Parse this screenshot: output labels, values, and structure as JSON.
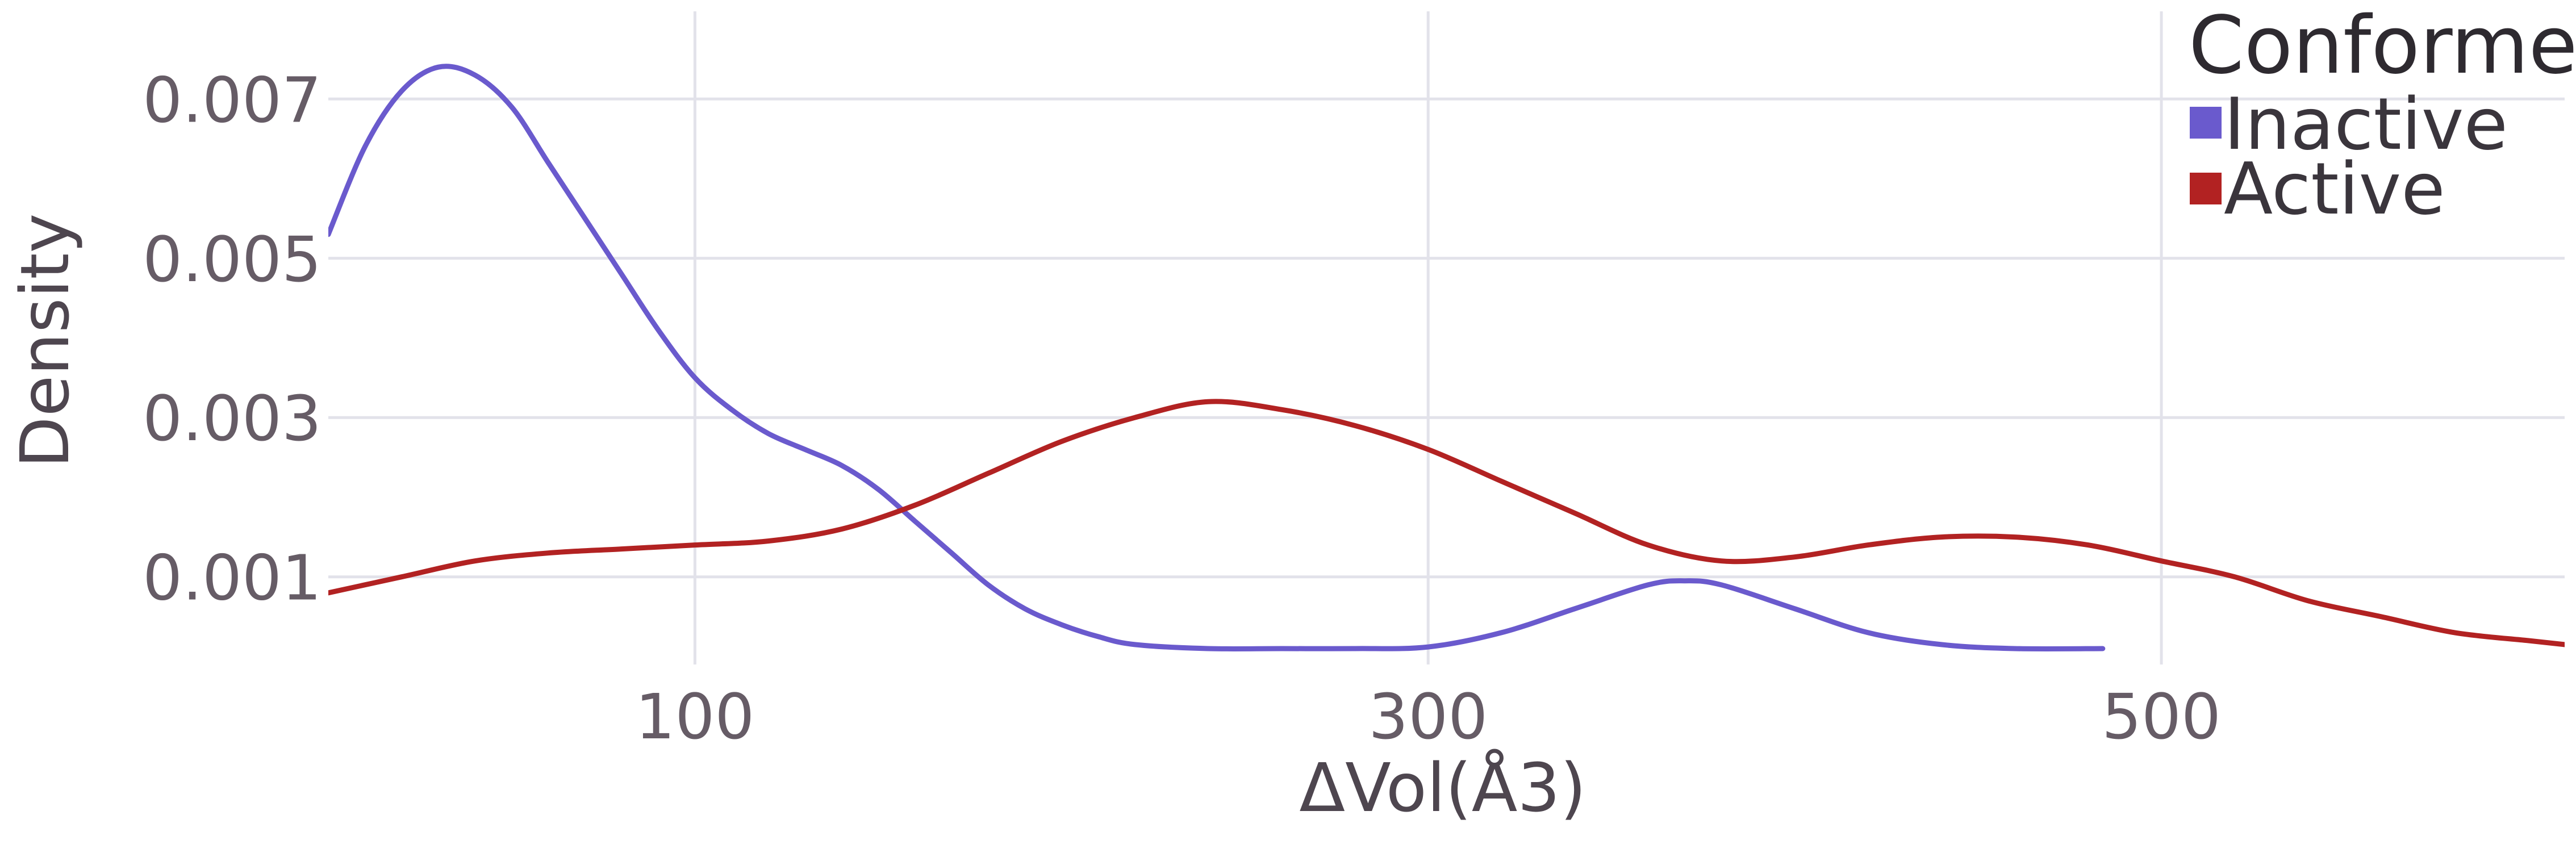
{
  "chart_data": {
    "type": "line",
    "xlabel": "ΔVol(Å3)",
    "ylabel": "Density",
    "xlim": [
      0,
      610
    ],
    "ylim": [
      -0.0001,
      0.0081
    ],
    "x_ticks": [
      100,
      300,
      500
    ],
    "x_tick_labels": [
      "100",
      "300",
      "500"
    ],
    "y_ticks": [
      0.001,
      0.003,
      0.005,
      0.007
    ],
    "y_tick_labels": [
      "0.001",
      "0.003",
      "0.005",
      "0.007"
    ],
    "grid": true,
    "legend": {
      "title": "Conformer",
      "placement": "top-right"
    },
    "series": [
      {
        "name": "Inactive",
        "color": "#6a5acd",
        "points": [
          [
            0,
            0.0053
          ],
          [
            10,
            0.0064
          ],
          [
            20,
            0.0071
          ],
          [
            30,
            0.0074
          ],
          [
            40,
            0.0073
          ],
          [
            50,
            0.0069
          ],
          [
            60,
            0.0062
          ],
          [
            70,
            0.0055
          ],
          [
            80,
            0.0048
          ],
          [
            90,
            0.0041
          ],
          [
            100,
            0.0035
          ],
          [
            110,
            0.0031
          ],
          [
            120,
            0.0028
          ],
          [
            130,
            0.0026
          ],
          [
            140,
            0.0024
          ],
          [
            150,
            0.0021
          ],
          [
            160,
            0.0017
          ],
          [
            170,
            0.0013
          ],
          [
            180,
            0.0009
          ],
          [
            190,
            0.0006
          ],
          [
            200,
            0.0004
          ],
          [
            210,
            0.00025
          ],
          [
            220,
            0.00015
          ],
          [
            240,
            0.0001
          ],
          [
            260,
            0.0001
          ],
          [
            280,
            0.0001
          ],
          [
            300,
            0.00012
          ],
          [
            320,
            0.0003
          ],
          [
            340,
            0.0006
          ],
          [
            360,
            0.0009
          ],
          [
            370,
            0.00095
          ],
          [
            380,
            0.0009
          ],
          [
            400,
            0.0006
          ],
          [
            420,
            0.0003
          ],
          [
            440,
            0.00015
          ],
          [
            460,
            0.0001
          ],
          [
            484,
            0.0001
          ]
        ]
      },
      {
        "name": "Active",
        "color": "#b22222",
        "points": [
          [
            0,
            0.0008
          ],
          [
            20,
            0.001
          ],
          [
            40,
            0.0012
          ],
          [
            60,
            0.0013
          ],
          [
            80,
            0.00135
          ],
          [
            100,
            0.0014
          ],
          [
            120,
            0.00145
          ],
          [
            140,
            0.0016
          ],
          [
            160,
            0.0019
          ],
          [
            180,
            0.0023
          ],
          [
            200,
            0.0027
          ],
          [
            220,
            0.003
          ],
          [
            240,
            0.0032
          ],
          [
            260,
            0.0031
          ],
          [
            280,
            0.0029
          ],
          [
            300,
            0.0026
          ],
          [
            320,
            0.0022
          ],
          [
            340,
            0.0018
          ],
          [
            360,
            0.0014
          ],
          [
            380,
            0.0012
          ],
          [
            400,
            0.00125
          ],
          [
            420,
            0.0014
          ],
          [
            440,
            0.0015
          ],
          [
            460,
            0.0015
          ],
          [
            480,
            0.0014
          ],
          [
            500,
            0.0012
          ],
          [
            520,
            0.001
          ],
          [
            540,
            0.0007
          ],
          [
            560,
            0.0005
          ],
          [
            580,
            0.0003
          ],
          [
            600,
            0.0002
          ],
          [
            610,
            0.00015
          ]
        ]
      }
    ]
  }
}
